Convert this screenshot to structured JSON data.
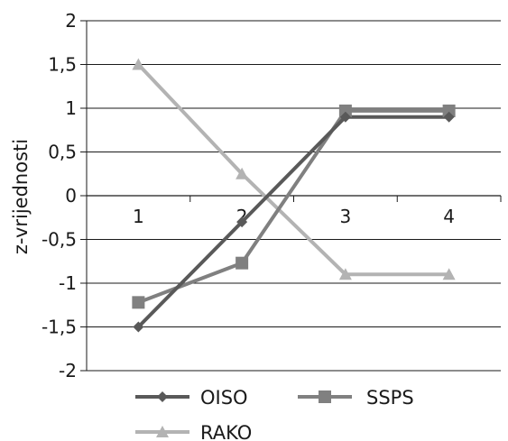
{
  "chart_data": {
    "type": "line",
    "title": "",
    "xlabel": "",
    "ylabel": "z-vrijednosti",
    "x": [
      "1",
      "2",
      "3",
      "4"
    ],
    "ylim": [
      -2,
      2
    ],
    "yticks": [
      {
        "value": 2,
        "label": "2"
      },
      {
        "value": 1.5,
        "label": "1,5"
      },
      {
        "value": 1,
        "label": "1"
      },
      {
        "value": 0.5,
        "label": "0,5"
      },
      {
        "value": 0,
        "label": "0"
      },
      {
        "value": -0.5,
        "label": "-0,5"
      },
      {
        "value": -1,
        "label": "-1"
      },
      {
        "value": -1.5,
        "label": "-1,5"
      },
      {
        "value": -2,
        "label": "-2"
      }
    ],
    "grid": "horizontal",
    "legend_position": "bottom",
    "series": [
      {
        "name": "OISO",
        "values": [
          -1.5,
          -0.3,
          0.9,
          0.9
        ],
        "color": "#595959",
        "marker": "diamond"
      },
      {
        "name": "SSPS",
        "values": [
          -1.22,
          -0.77,
          0.97,
          0.97
        ],
        "color": "#808080",
        "marker": "square"
      },
      {
        "name": "RAKO",
        "values": [
          1.5,
          0.25,
          -0.9,
          -0.9
        ],
        "color": "#b3b3b3",
        "marker": "triangle"
      }
    ]
  }
}
